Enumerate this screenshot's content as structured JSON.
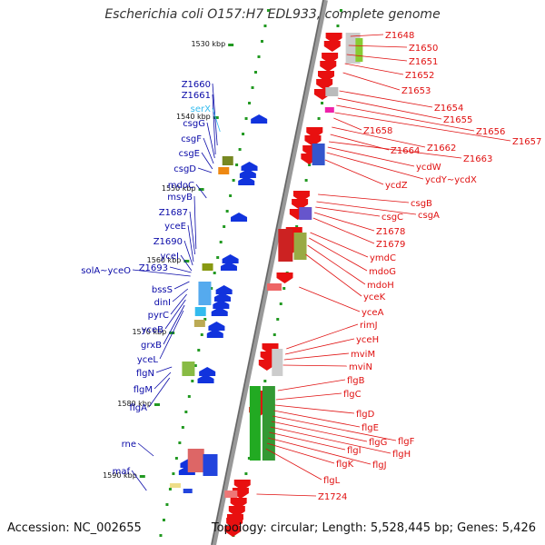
{
  "title": "Escherichia coli O157:H7 EDL933, complete genome",
  "footer": {
    "accession": "Accession: NC_002655",
    "topology": "Topology: circular; Length: 5,528,445 bp; Genes: 5,426"
  },
  "colors": {
    "left_label": "#0a0aa8",
    "right_label": "#e01010",
    "serX": "#33bbee",
    "backbone": "#888888",
    "tick": "#229922"
  },
  "kbp_markers": [
    "1530 kbp",
    "1540 kbp",
    "1550 kbp",
    "1560 kbp",
    "1570 kbp",
    "1580 kbp",
    "1590 kbp"
  ],
  "left_labels": [
    "Z1660",
    "Z1661",
    "serX",
    "csgG",
    "csgF",
    "csgE",
    "csgD",
    "mdoC",
    "msyB",
    "Z1687",
    "yceE",
    "Z1690",
    "yceI",
    "solA~yceO",
    "Z1693",
    "bssS",
    "dinI",
    "pyrC",
    "yceB",
    "grxB",
    "yceL",
    "flgN",
    "flgM",
    "flgA",
    "rne",
    "maf"
  ],
  "right_labels": [
    "Z1648",
    "Z1650",
    "Z1651",
    "Z1652",
    "Z1653",
    "Z1654",
    "Z1655",
    "Z1656",
    "Z1657",
    "Z1658",
    "Z1662",
    "Z1664",
    "Z1663",
    "ycdW",
    "ycdY~ycdX",
    "ycdZ",
    "csgB",
    "csgA",
    "csgC",
    "Z1678",
    "Z1679",
    "ymdC",
    "mdoG",
    "mdoH",
    "yceK",
    "yceA",
    "rimJ",
    "yceH",
    "mviM",
    "mviN",
    "flgB",
    "flgC",
    "flgD",
    "flgE",
    "flgF",
    "flgG",
    "flgH",
    "flgI",
    "flgJ",
    "flgK",
    "flgL",
    "Z1724"
  ]
}
